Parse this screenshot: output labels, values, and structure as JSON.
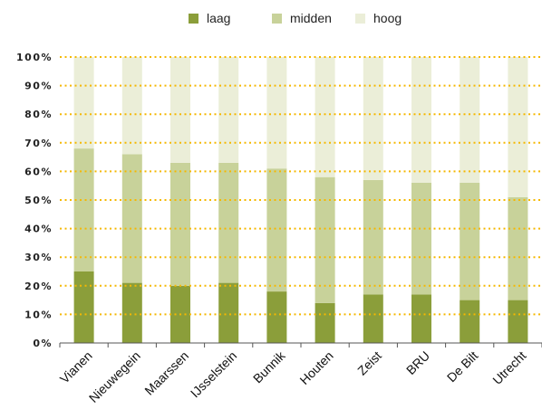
{
  "chart_data": {
    "type": "bar",
    "stacked": true,
    "title": "",
    "xlabel": "",
    "ylabel": "",
    "ylim": [
      0,
      100
    ],
    "yticks": [
      "0%",
      "10%",
      "20%",
      "30%",
      "40%",
      "50%",
      "60%",
      "70%",
      "80%",
      "90%",
      "100%"
    ],
    "grid": true,
    "legend_position": "top-center",
    "categories": [
      "Vianen",
      "Nieuwegein",
      "Maarssen",
      "IJsselstein",
      "Bunnik",
      "Houten",
      "Zeist",
      "BRU",
      "De Bilt",
      "Utrecht"
    ],
    "series": [
      {
        "name": "laag",
        "color": "#8b9e3a",
        "values": [
          25,
          21,
          20,
          21,
          18,
          14,
          17,
          17,
          15,
          15
        ]
      },
      {
        "name": "midden",
        "color": "#c8d29a",
        "values": [
          43,
          45,
          43,
          42,
          43,
          44,
          40,
          39,
          41,
          36
        ]
      },
      {
        "name": "hoog",
        "color": "#ebeed8",
        "values": [
          32,
          34,
          37,
          37,
          39,
          42,
          43,
          44,
          44,
          49
        ]
      }
    ],
    "grid_color": "#f5b800"
  }
}
